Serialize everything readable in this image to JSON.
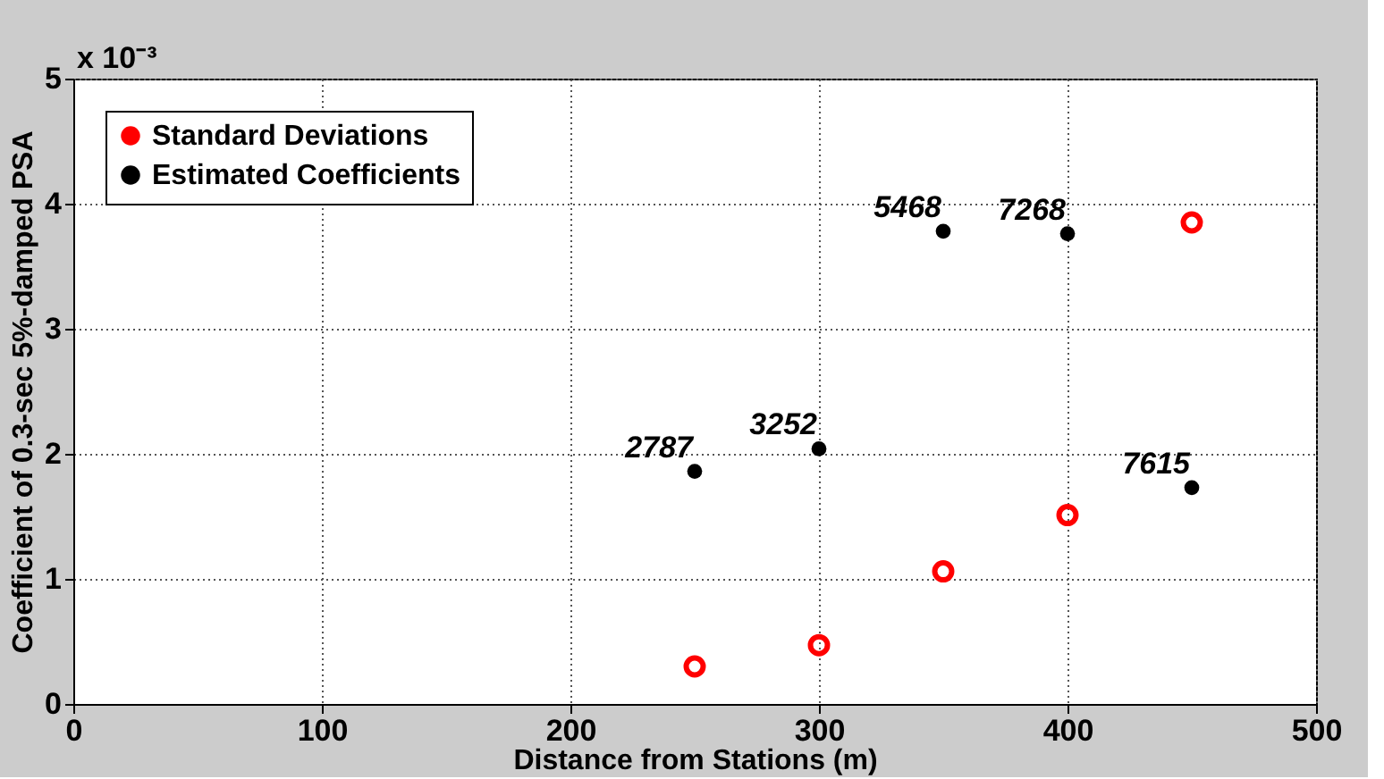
{
  "chart_data": {
    "type": "scatter",
    "xlabel": "Distance from Stations (m)",
    "ylabel": "Coefficient of 0.3-sec 5%-damped PSA",
    "x": [
      250,
      300,
      350,
      400,
      450
    ],
    "series": [
      {
        "name": "Standard Deviations",
        "color": "#ff0000",
        "values": [
          0.3,
          0.47,
          1.06,
          1.51,
          3.85
        ]
      },
      {
        "name": "Estimated Coefficients",
        "color": "#000000",
        "values": [
          1.86,
          2.04,
          3.78,
          3.76,
          1.73
        ]
      }
    ],
    "annotations": [
      "x 10⁻³",
      {
        "text": "2787",
        "x": 250,
        "y": 1.86
      },
      {
        "text": "3252",
        "x": 300,
        "y": 2.04
      },
      {
        "text": "5468",
        "x": 350,
        "y": 3.78
      },
      {
        "text": "7268",
        "x": 400,
        "y": 3.76
      },
      {
        "text": "7615",
        "x": 450,
        "y": 1.73
      }
    ],
    "xlim": [
      0,
      500
    ],
    "xticks": [
      0,
      100,
      200,
      300,
      400,
      500
    ],
    "ylim": [
      0,
      5
    ],
    "yticks": [
      0,
      1,
      2,
      3,
      4,
      5
    ],
    "grid": true,
    "legend": "top left",
    "marker": "circle"
  }
}
